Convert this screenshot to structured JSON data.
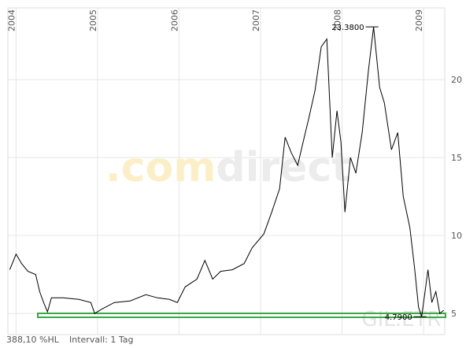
{
  "chart_data": {
    "type": "line",
    "watermark": [
      ".com",
      "direct"
    ],
    "symbol": "GIL.ETR",
    "footer": [
      "388,10 %HL",
      "Intervall: 1 Tag"
    ],
    "xlim": [
      2003.9,
      2009.26
    ],
    "xticks": [
      2004,
      2005,
      2006,
      2007,
      2008,
      2009
    ],
    "ylim": [
      3.64,
      24.6
    ],
    "yticks": [
      5,
      10,
      15,
      20
    ],
    "grid": true,
    "series": [
      {
        "color": "#000000",
        "x": [
          2003.923,
          2004.0,
          2004.068,
          2004.145,
          2004.241,
          2004.29,
          2004.338,
          2004.386,
          2004.434,
          2004.579,
          2004.772,
          2004.917,
          2004.965,
          2005.062,
          2005.207,
          2005.4,
          2005.593,
          2005.737,
          2005.882,
          2005.979,
          2006.075,
          2006.22,
          2006.317,
          2006.413,
          2006.51,
          2006.654,
          2006.799,
          2006.896,
          2007.041,
          2007.137,
          2007.234,
          2007.301,
          2007.378,
          2007.456,
          2007.523,
          2007.591,
          2007.668,
          2007.745,
          2007.813,
          2007.88,
          2007.938,
          2007.986,
          2008.035,
          2008.103,
          2008.17,
          2008.247,
          2008.324,
          2008.387,
          2008.461,
          2008.519,
          2008.606,
          2008.683,
          2008.751,
          2008.832,
          2008.89,
          2008.938,
          2008.977,
          2009.054,
          2009.102,
          2009.151,
          2009.199,
          2009.247
        ],
        "values": [
          7.8,
          8.8,
          8.2,
          7.7,
          7.5,
          6.4,
          5.7,
          5.1,
          6.0,
          6.0,
          5.9,
          5.7,
          5.0,
          5.3,
          5.7,
          5.8,
          6.2,
          6.0,
          5.9,
          5.7,
          6.7,
          7.2,
          8.4,
          7.2,
          7.7,
          7.8,
          8.2,
          9.2,
          10.1,
          11.5,
          13.0,
          16.3,
          15.3,
          14.5,
          16.0,
          17.5,
          19.3,
          22.1,
          22.6,
          15.0,
          18.0,
          16.0,
          11.5,
          15.0,
          14.0,
          16.6,
          20.6,
          23.38,
          19.5,
          18.5,
          15.5,
          16.6,
          12.5,
          10.5,
          7.9,
          5.4,
          4.79,
          7.8,
          5.7,
          6.4,
          5.0,
          5.2
        ]
      }
    ],
    "annotations": [
      {
        "label": "23.3800",
        "x": 2008.387,
        "y": 23.38
      },
      {
        "label": "4.7900",
        "x": 2008.977,
        "y": 4.79
      }
    ]
  }
}
